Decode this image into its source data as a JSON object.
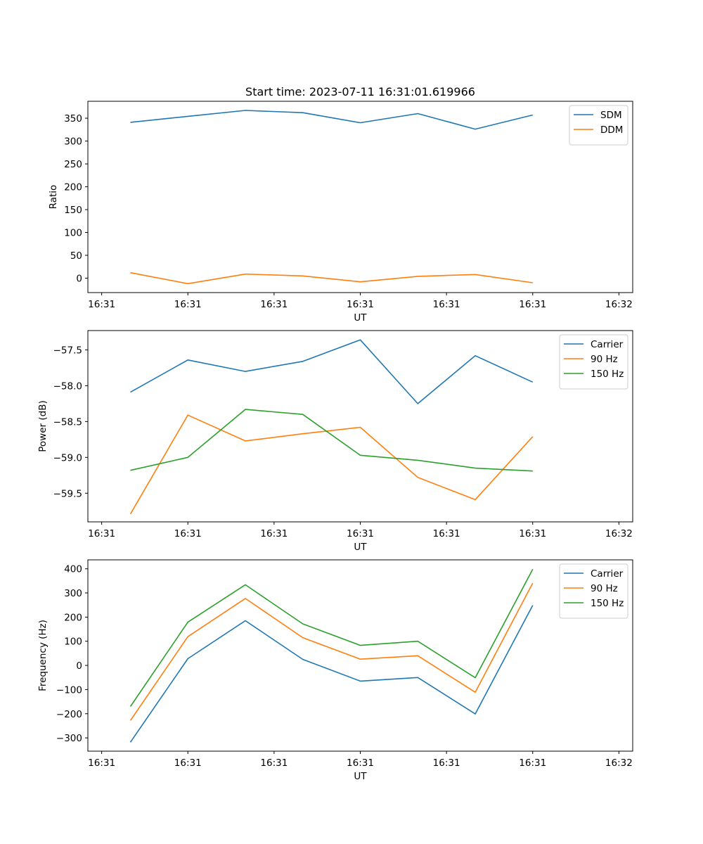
{
  "figure": {
    "title": "Start time: 2023-07-11 16:31:01.619966"
  },
  "colors": {
    "blue": "#1f77b4",
    "orange": "#ff7f0e",
    "green": "#2ca02c"
  },
  "chart_data": [
    {
      "type": "line",
      "title": "Start time: 2023-07-11 16:31:01.619966",
      "xlabel": "UT",
      "ylabel": "Ratio",
      "x": [
        1,
        2,
        3,
        4,
        5,
        6,
        7,
        8
      ],
      "xlim": [
        0.26,
        9.74
      ],
      "xticks": [
        0.5,
        2.0,
        3.5,
        5.0,
        6.5,
        8.0,
        9.5
      ],
      "xtick_labels": [
        "16:31",
        "16:31",
        "16:31",
        "16:31",
        "16:31",
        "16:31",
        "16:32"
      ],
      "ylim": [
        -31.5,
        387
      ],
      "yticks": [
        0,
        50,
        100,
        150,
        200,
        250,
        300,
        350
      ],
      "ytick_labels": [
        "0",
        "50",
        "100",
        "150",
        "200",
        "250",
        "300",
        "350"
      ],
      "legend_position": "top-right",
      "series": [
        {
          "name": "SDM",
          "color": "#1f77b4",
          "values": [
            341,
            354,
            367,
            362,
            340,
            360,
            326,
            357
          ]
        },
        {
          "name": "DDM",
          "color": "#ff7f0e",
          "values": [
            12,
            -12,
            9,
            5,
            -8,
            4,
            8,
            -10
          ]
        }
      ]
    },
    {
      "type": "line",
      "xlabel": "UT",
      "ylabel": "Power (dB)",
      "x": [
        1,
        2,
        3,
        4,
        5,
        6,
        7,
        8
      ],
      "xlim": [
        0.26,
        9.74
      ],
      "xticks": [
        0.5,
        2.0,
        3.5,
        5.0,
        6.5,
        8.0,
        9.5
      ],
      "xtick_labels": [
        "16:31",
        "16:31",
        "16:31",
        "16:31",
        "16:31",
        "16:31",
        "16:32"
      ],
      "ylim": [
        -59.9,
        -57.23
      ],
      "yticks": [
        -59.5,
        -59.0,
        -58.5,
        -58.0,
        -57.5
      ],
      "ytick_labels": [
        "−59.5",
        "−59.0",
        "−58.5",
        "−58.0",
        "−57.5"
      ],
      "legend_position": "top-right",
      "series": [
        {
          "name": "Carrier",
          "color": "#1f77b4",
          "values": [
            -58.09,
            -57.64,
            -57.8,
            -57.66,
            -57.36,
            -58.25,
            -57.58,
            -57.95
          ]
        },
        {
          "name": "90 Hz",
          "color": "#ff7f0e",
          "values": [
            -59.79,
            -58.41,
            -58.77,
            -58.67,
            -58.58,
            -59.28,
            -59.59,
            -58.71
          ]
        },
        {
          "name": "150 Hz",
          "color": "#2ca02c",
          "values": [
            -59.18,
            -59.0,
            -58.33,
            -58.4,
            -58.97,
            -59.04,
            -59.15,
            -59.19
          ]
        }
      ]
    },
    {
      "type": "line",
      "xlabel": "UT",
      "ylabel": "Frequency (Hz)",
      "x": [
        1,
        2,
        3,
        4,
        5,
        6,
        7,
        8
      ],
      "xlim": [
        0.26,
        9.74
      ],
      "xticks": [
        0.5,
        2.0,
        3.5,
        5.0,
        6.5,
        8.0,
        9.5
      ],
      "xtick_labels": [
        "16:31",
        "16:31",
        "16:31",
        "16:31",
        "16:31",
        "16:31",
        "16:32"
      ],
      "ylim": [
        -355,
        437
      ],
      "yticks": [
        -300,
        -200,
        -100,
        0,
        100,
        200,
        300,
        400
      ],
      "ytick_labels": [
        "−300",
        "−200",
        "−100",
        "0",
        "100",
        "200",
        "300",
        "400"
      ],
      "legend_position": "top-right",
      "series": [
        {
          "name": "Carrier",
          "color": "#1f77b4",
          "values": [
            -318,
            28,
            185,
            25,
            -65,
            -50,
            -201,
            249
          ]
        },
        {
          "name": "90 Hz",
          "color": "#ff7f0e",
          "values": [
            -228,
            119,
            277,
            115,
            26,
            40,
            -111,
            341
          ]
        },
        {
          "name": "150 Hz",
          "color": "#2ca02c",
          "values": [
            -170,
            179,
            334,
            172,
            83,
            100,
            -51,
            398
          ]
        }
      ]
    }
  ]
}
